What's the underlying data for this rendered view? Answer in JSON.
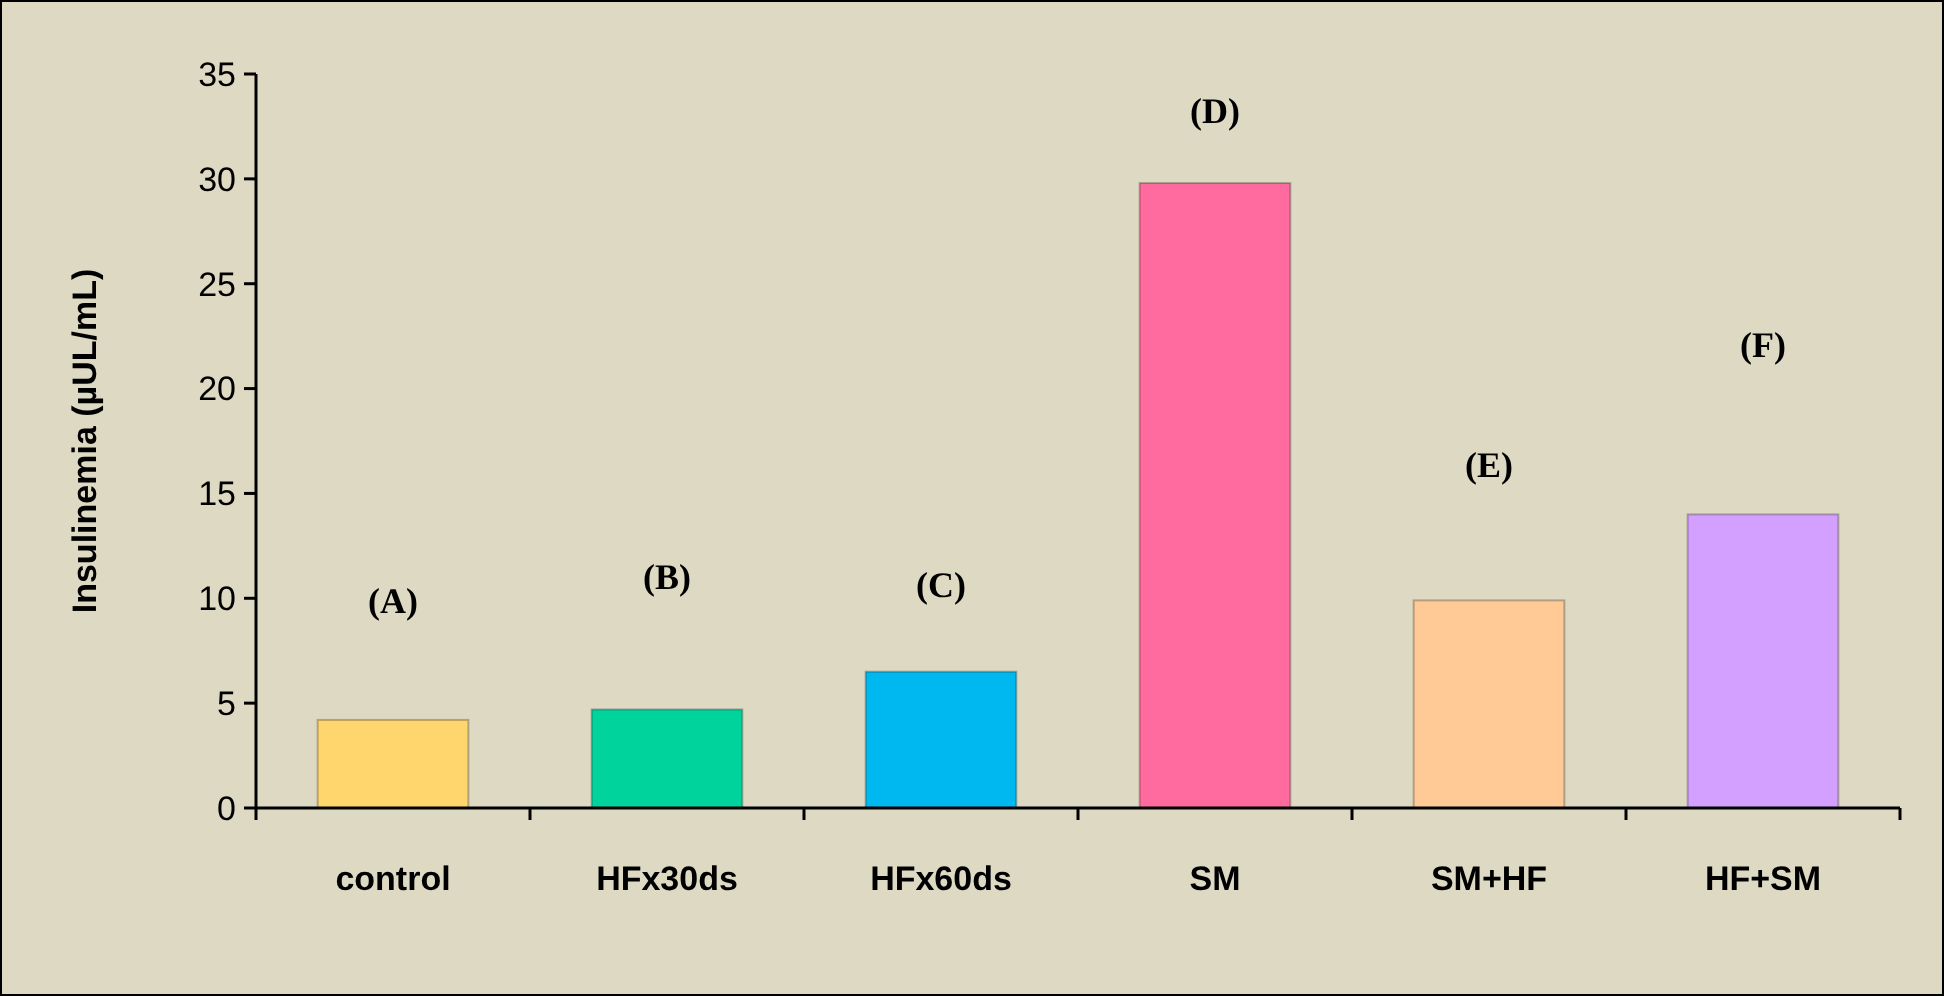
{
  "chart_data": {
    "type": "bar",
    "ylabel": "Insulinemia (µUL/mL)",
    "categories": [
      "control",
      "HFx30ds",
      "HFx60ds",
      "SM",
      "SM+HF",
      "HF+SM"
    ],
    "values": [
      4.2,
      4.7,
      6.5,
      29.8,
      9.9,
      14.0
    ],
    "colors": [
      "#ffd66e",
      "#00d49c",
      "#00b8f0",
      "#ff6b9e",
      "#ffca96",
      "#d4a0ff"
    ],
    "ylim": [
      0,
      35
    ],
    "yticks": [
      0,
      5,
      10,
      15,
      20,
      25,
      30,
      35
    ],
    "grid": false,
    "annotations": [
      "(A)",
      "(B)",
      "(C)",
      "(D)",
      "(E)",
      "(F)"
    ]
  }
}
